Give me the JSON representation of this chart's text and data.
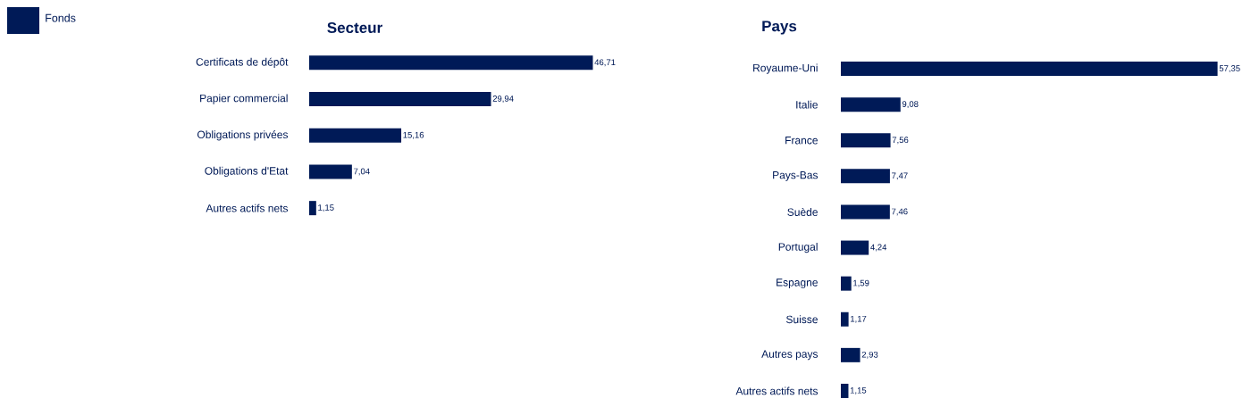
{
  "chart_data": [
    {
      "type": "bar",
      "orientation": "horizontal",
      "title": "Secteur",
      "categories": [
        "Certificats de dépôt",
        "Papier commercial",
        "Obligations privées",
        "Obligations d'Etat",
        "Autres actifs nets"
      ],
      "series": [
        {
          "name": "Fonds",
          "color": "#001a57",
          "values": [
            46.71,
            29.94,
            15.16,
            7.04,
            1.15
          ],
          "value_labels": [
            "46,71",
            "29,94",
            "15,16",
            "7,04",
            "1,15"
          ]
        }
      ],
      "legend": "top left",
      "tick_labels": "y"
    },
    {
      "type": "bar",
      "orientation": "horizontal",
      "title": "Pays",
      "categories": [
        "Royaume-Uni",
        "Italie",
        "France",
        "Pays-Bas",
        "Suède",
        "Portugal",
        "Espagne",
        "Suisse",
        "Autres pays",
        "Autres actifs nets"
      ],
      "series": [
        {
          "color": "#001a57",
          "values": [
            57.35,
            9.08,
            7.56,
            7.47,
            7.46,
            4.24,
            1.59,
            1.17,
            2.93,
            1.15
          ],
          "value_labels": [
            "57,35",
            "9,08",
            "7,56",
            "7,47",
            "7,46",
            "4,24",
            "1,59",
            "1,17",
            "2,93",
            "1,15"
          ]
        }
      ],
      "tick_labels": "y"
    }
  ]
}
